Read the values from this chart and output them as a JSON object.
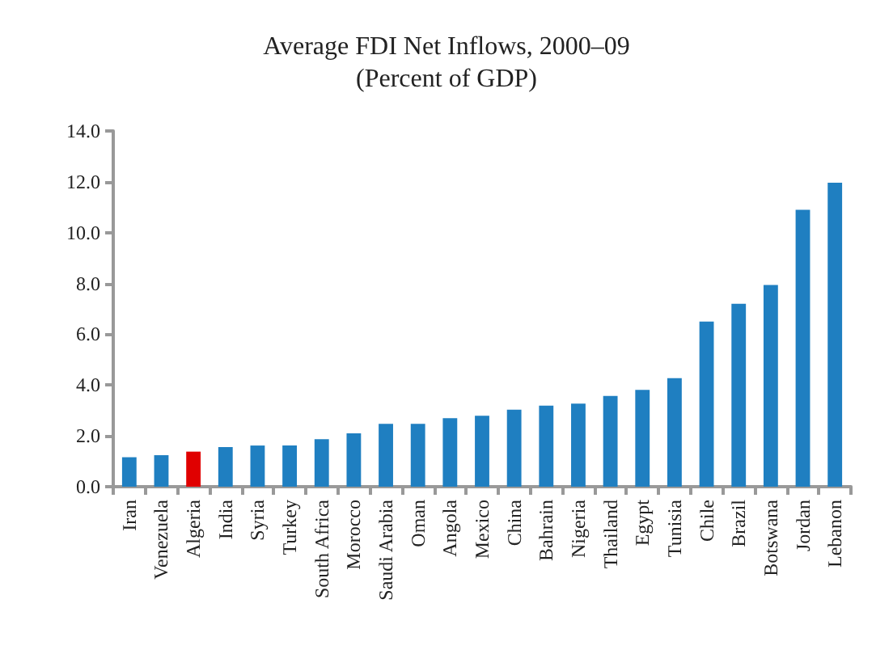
{
  "chart_data": {
    "type": "bar",
    "title": "Average FDI Net Inflows, 2000–09",
    "subtitle": "(Percent of GDP)",
    "categories": [
      "Iran",
      "Venezuela",
      "Algeria",
      "India",
      "Syria",
      "Turkey",
      "South Africa",
      "Morocco",
      "Saudi Arabia",
      "Oman",
      "Angola",
      "Mexico",
      "China",
      "Bahrain",
      "Nigeria",
      "Thailand",
      "Egypt",
      "Tunisia",
      "Chile",
      "Brazil",
      "Botswana",
      "Jordan",
      "Lebanon"
    ],
    "values": [
      1.16,
      1.24,
      1.38,
      1.56,
      1.62,
      1.62,
      1.87,
      2.1,
      2.47,
      2.47,
      2.7,
      2.79,
      3.03,
      3.19,
      3.27,
      3.57,
      3.81,
      4.27,
      6.5,
      7.2,
      7.94,
      10.9,
      11.96
    ],
    "colors": [
      "#1f7fc1",
      "#1f7fc1",
      "#e00000",
      "#1f7fc1",
      "#1f7fc1",
      "#1f7fc1",
      "#1f7fc1",
      "#1f7fc1",
      "#1f7fc1",
      "#1f7fc1",
      "#1f7fc1",
      "#1f7fc1",
      "#1f7fc1",
      "#1f7fc1",
      "#1f7fc1",
      "#1f7fc1",
      "#1f7fc1",
      "#1f7fc1",
      "#1f7fc1",
      "#1f7fc1",
      "#1f7fc1",
      "#1f7fc1",
      "#1f7fc1"
    ],
    "ylim": [
      0,
      14
    ],
    "yticks": [
      {
        "value": 0,
        "label": "0.0"
      },
      {
        "value": 2,
        "label": "2.0"
      },
      {
        "value": 4,
        "label": "4.0"
      },
      {
        "value": 6,
        "label": "6.0"
      },
      {
        "value": 8,
        "label": "8.0"
      },
      {
        "value": 10,
        "label": "10.0"
      },
      {
        "value": 12,
        "label": "12.0"
      },
      {
        "value": 14,
        "label": "14.0"
      }
    ],
    "grid": false
  }
}
